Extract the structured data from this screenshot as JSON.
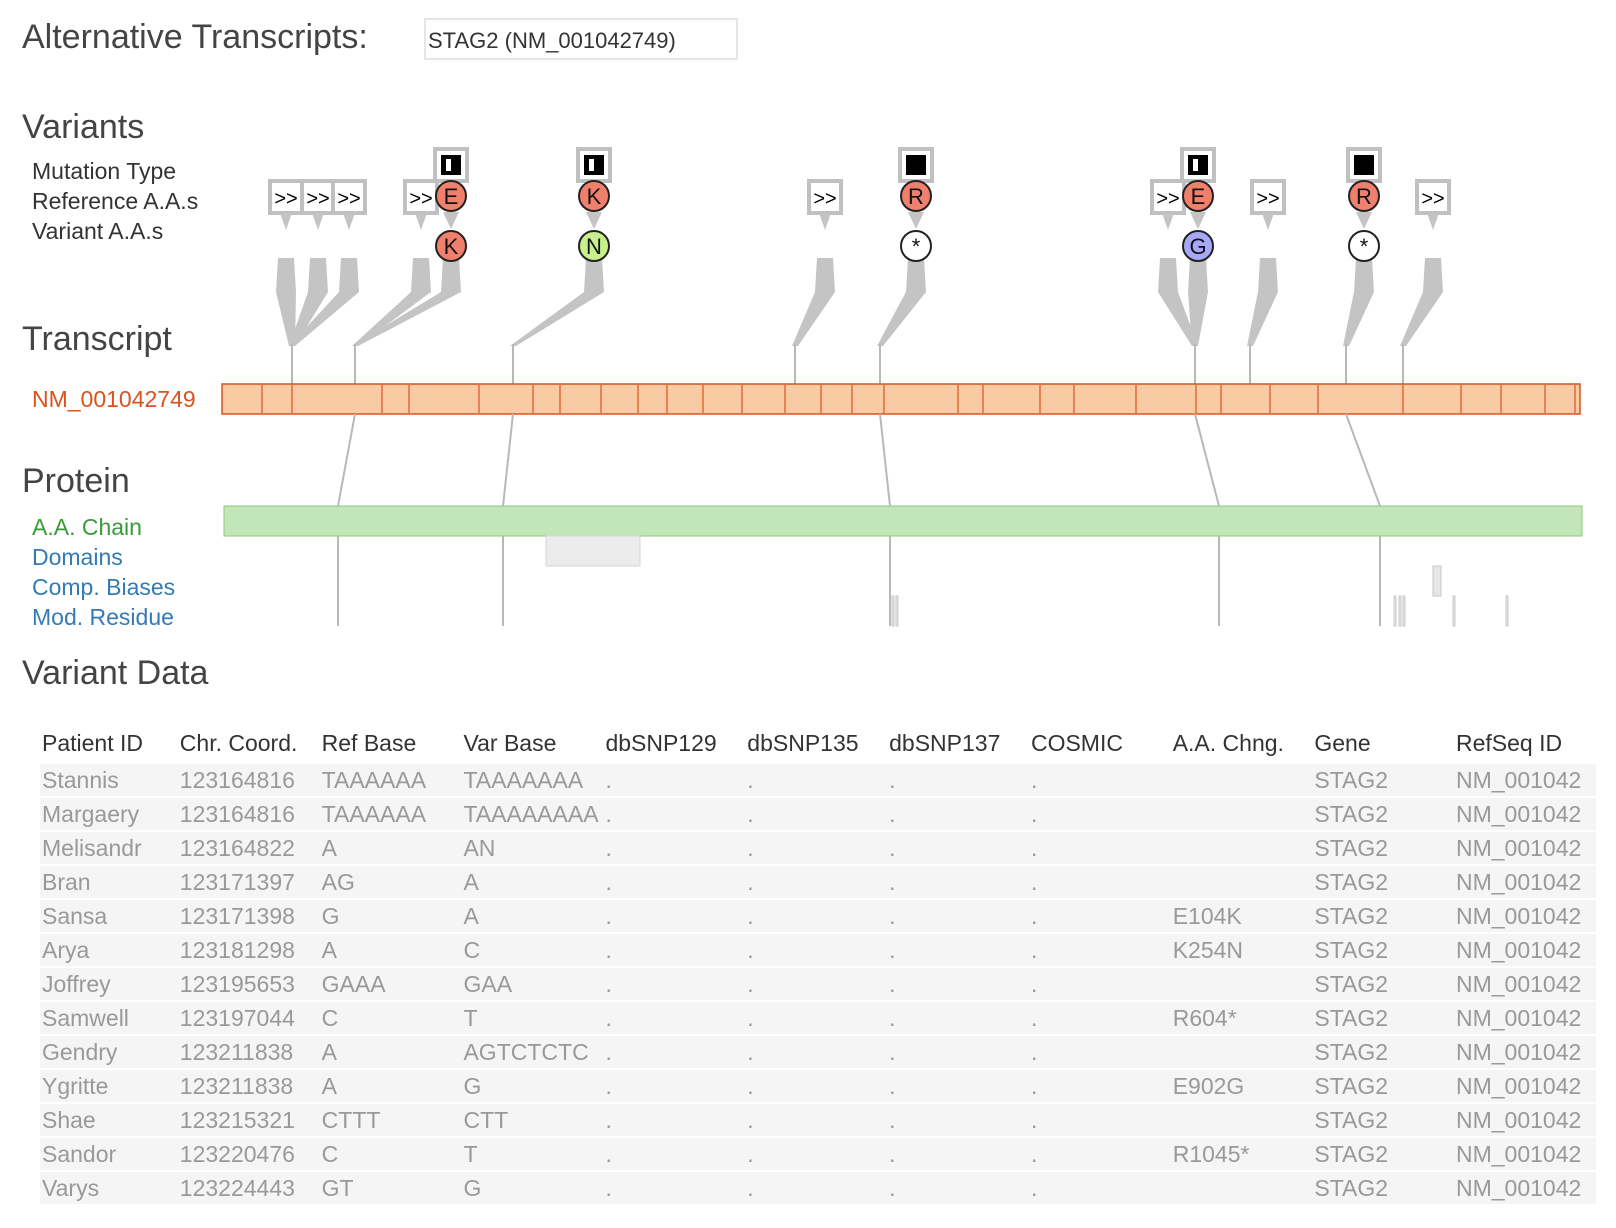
{
  "header": {
    "alt_label": "Alternative Transcripts:",
    "alt_value": "STAG2 (NM_001042749)"
  },
  "sections": {
    "variants": "Variants",
    "transcript": "Transcript",
    "protein": "Protein",
    "variant_data": "Variant Data"
  },
  "row_labels": {
    "mutation_type": "Mutation Type",
    "reference_aas": "Reference A.A.s",
    "variant_aas": "Variant A.A.s",
    "transcript_id": "NM_001042749",
    "aa_chain": "A.A. Chain",
    "domains": "Domains",
    "comp_biases": "Comp. Biases",
    "mod_residue": "Mod. Residue"
  },
  "colors": {
    "transcript_fill": "#f8cba4",
    "transcript_stroke": "#d9531e",
    "chain_fill": "#c3e6b8",
    "ref_aa_fill": "#f0806c",
    "var_k_fill": "#f0806c",
    "var_n_fill": "#c8f08c",
    "var_g_fill": "#a8a8f8",
    "connector": "#c4c4c4"
  },
  "variant_markers": [
    {
      "mutation": "frameshift",
      "symbol": ">>"
    },
    {
      "mutation": "frameshift",
      "symbol": ">>"
    },
    {
      "mutation": "frameshift",
      "symbol": ">>"
    },
    {
      "mutation": "frameshift",
      "symbol": ">>"
    },
    {
      "mutation": "missense",
      "ref": "E",
      "var": "K"
    },
    {
      "mutation": "missense",
      "ref": "K",
      "var": "N"
    },
    {
      "mutation": "frameshift",
      "symbol": ">>"
    },
    {
      "mutation": "nonsense",
      "ref": "R",
      "var": "*"
    },
    {
      "mutation": "frameshift",
      "symbol": ">>"
    },
    {
      "mutation": "missense",
      "ref": "E",
      "var": "G"
    },
    {
      "mutation": "frameshift",
      "symbol": ">>"
    },
    {
      "mutation": "nonsense",
      "ref": "R",
      "var": "*"
    },
    {
      "mutation": "frameshift",
      "symbol": ">>"
    }
  ],
  "table": {
    "headers": [
      "Patient ID",
      "Chr. Coord.",
      "Ref Base",
      "Var Base",
      "dbSNP129",
      "dbSNP135",
      "dbSNP137",
      "COSMIC",
      "A.A. Chng.",
      "Gene",
      "RefSeq ID"
    ],
    "rows": [
      [
        "Stannis",
        "123164816",
        "TAAAAAA",
        "TAAAAAAA",
        ".",
        ".",
        ".",
        ".",
        "",
        "STAG2",
        "NM_001042"
      ],
      [
        "Margaery",
        "123164816",
        "TAAAAAA",
        "TAAAAAAAA",
        ".",
        ".",
        ".",
        ".",
        "",
        "STAG2",
        "NM_001042"
      ],
      [
        "Melisandr",
        "123164822",
        "A",
        "AN",
        ".",
        ".",
        ".",
        ".",
        "",
        "STAG2",
        "NM_001042"
      ],
      [
        "Bran",
        "123171397",
        "AG",
        "A",
        ".",
        ".",
        ".",
        ".",
        "",
        "STAG2",
        "NM_001042"
      ],
      [
        "Sansa",
        "123171398",
        "G",
        "A",
        ".",
        ".",
        ".",
        ".",
        "E104K",
        "STAG2",
        "NM_001042"
      ],
      [
        "Arya",
        "123181298",
        "A",
        "C",
        ".",
        ".",
        ".",
        ".",
        "K254N",
        "STAG2",
        "NM_001042"
      ],
      [
        "Joffrey",
        "123195653",
        "GAAA",
        "GAA",
        ".",
        ".",
        ".",
        ".",
        "",
        "STAG2",
        "NM_001042"
      ],
      [
        "Samwell",
        "123197044",
        "C",
        "T",
        ".",
        ".",
        ".",
        ".",
        "R604*",
        "STAG2",
        "NM_001042"
      ],
      [
        "Gendry",
        "123211838",
        "A",
        "AGTCTCTC",
        ".",
        ".",
        ".",
        ".",
        "",
        "STAG2",
        "NM_001042"
      ],
      [
        "Ygritte",
        "123211838",
        "A",
        "G",
        ".",
        ".",
        ".",
        ".",
        "E902G",
        "STAG2",
        "NM_001042"
      ],
      [
        "Shae",
        "123215321",
        "CTTT",
        "CTT",
        ".",
        ".",
        ".",
        ".",
        "",
        "STAG2",
        "NM_001042"
      ],
      [
        "Sandor",
        "123220476",
        "C",
        "T",
        ".",
        ".",
        ".",
        ".",
        "R1045*",
        "STAG2",
        "NM_001042"
      ],
      [
        "Varys",
        "123224443",
        "GT",
        "G",
        ".",
        ".",
        ".",
        ".",
        "",
        "STAG2",
        "NM_001042"
      ]
    ]
  }
}
